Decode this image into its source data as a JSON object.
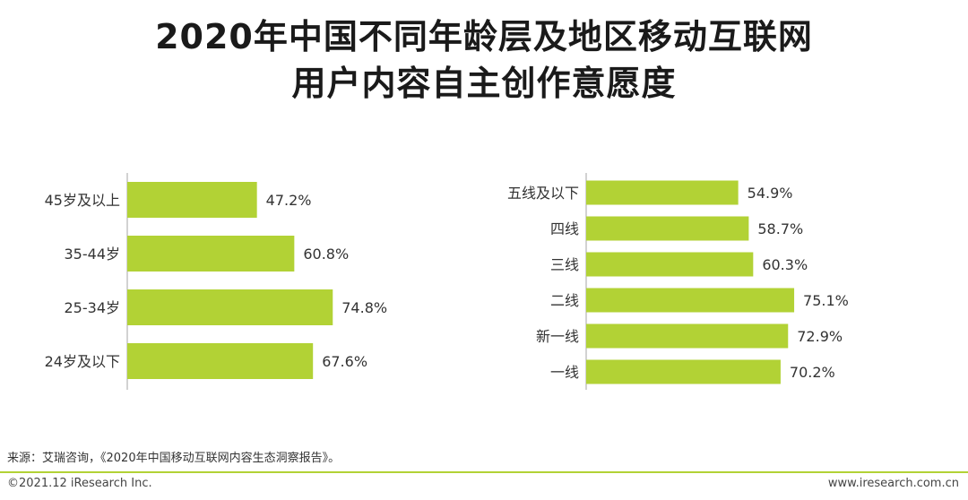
{
  "title": {
    "line1": "2020年中国不同年龄层及地区移动互联网",
    "line2": "用户内容自主创作意愿度"
  },
  "colors": {
    "bar": "#b2d235",
    "axis": "#a6a6a6",
    "text": "#333333"
  },
  "chart_data": [
    {
      "type": "bar",
      "orientation": "horizontal",
      "categories": [
        "45岁及以上",
        "35-44岁",
        "25-34岁",
        "24岁及以下"
      ],
      "values": [
        47.2,
        60.8,
        74.8,
        67.6
      ],
      "labels": [
        "47.2%",
        "60.8%",
        "74.8%",
        "67.6%"
      ],
      "xlim": [
        0,
        100
      ],
      "grid": false
    },
    {
      "type": "bar",
      "orientation": "horizontal",
      "categories": [
        "五线及以下",
        "四线",
        "三线",
        "二线",
        "新一线",
        "一线"
      ],
      "values": [
        54.9,
        58.7,
        60.3,
        75.1,
        72.9,
        70.2
      ],
      "labels": [
        "54.9%",
        "58.7%",
        "60.3%",
        "75.1%",
        "72.9%",
        "70.2%"
      ],
      "xlim": [
        0,
        100
      ],
      "grid": false
    }
  ],
  "footer": {
    "source": "来源：艾瑞咨询，《2020年中国移动互联网内容生态洞察报告》。",
    "copyright": "©2021.12 iResearch Inc.",
    "website": "www.iresearch.com.cn"
  }
}
